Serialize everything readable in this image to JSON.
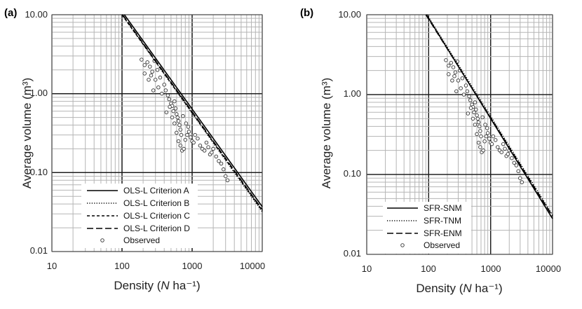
{
  "chart_data": [
    {
      "type": "scatter",
      "panel_label": "(a)",
      "xlabel_prefix": "Density (",
      "xlabel_var": "N",
      "xlabel_suffix": " ha⁻¹)",
      "ylabel": "Average volume (m³)",
      "xscale": "log",
      "yscale": "log",
      "xlim": [
        10,
        10000
      ],
      "ylim": [
        0.01,
        10
      ],
      "x_ticks": [
        "10",
        "100",
        "1000",
        "10000"
      ],
      "y_ticks": [
        "0.01",
        "0.10",
        "1.00",
        "10.00"
      ],
      "legend_position": "bottom-left",
      "series": [
        {
          "name": "OLS-L Criterion A",
          "style": "solid",
          "points": [
            [
              108,
              10
            ],
            [
              10000,
              0.037
            ]
          ]
        },
        {
          "name": "OLS-L Criterion B",
          "style": "dotted",
          "points": [
            [
              100,
              10
            ],
            [
              10000,
              0.032
            ]
          ]
        },
        {
          "name": "OLS-L Criterion C",
          "style": "dashed",
          "points": [
            [
              100,
              10
            ],
            [
              10000,
              0.033
            ]
          ]
        },
        {
          "name": "OLS-L Criterion D",
          "style": "longdash",
          "points": [
            [
              102,
              10
            ],
            [
              10000,
              0.034
            ]
          ]
        }
      ],
      "observed_label": "Observed",
      "observed": [
        [
          190,
          2.7
        ],
        [
          210,
          2.3
        ],
        [
          230,
          2.5
        ],
        [
          250,
          2.2
        ],
        [
          270,
          1.9
        ],
        [
          290,
          2.6
        ],
        [
          210,
          1.8
        ],
        [
          240,
          1.5
        ],
        [
          260,
          1.7
        ],
        [
          300,
          1.5
        ],
        [
          320,
          2.0
        ],
        [
          330,
          1.2
        ],
        [
          280,
          1.1
        ],
        [
          350,
          1.6
        ],
        [
          370,
          1.0
        ],
        [
          400,
          1.3
        ],
        [
          420,
          1.1
        ],
        [
          450,
          0.95
        ],
        [
          470,
          0.85
        ],
        [
          500,
          0.75
        ],
        [
          520,
          0.7
        ],
        [
          540,
          0.6
        ],
        [
          560,
          0.8
        ],
        [
          580,
          0.65
        ],
        [
          600,
          0.55
        ],
        [
          620,
          0.5
        ],
        [
          640,
          0.45
        ],
        [
          660,
          0.4
        ],
        [
          680,
          0.35
        ],
        [
          700,
          0.3
        ],
        [
          520,
          0.5
        ],
        [
          560,
          0.42
        ],
        [
          600,
          0.32
        ],
        [
          640,
          0.25
        ],
        [
          680,
          0.22
        ],
        [
          720,
          0.19
        ],
        [
          760,
          0.2
        ],
        [
          800,
          0.26
        ],
        [
          850,
          0.3
        ],
        [
          900,
          0.33
        ],
        [
          950,
          0.28
        ],
        [
          1000,
          0.25
        ],
        [
          1050,
          0.24
        ],
        [
          1100,
          0.3
        ],
        [
          1200,
          0.27
        ],
        [
          1300,
          0.22
        ],
        [
          1400,
          0.2
        ],
        [
          1500,
          0.19
        ],
        [
          1600,
          0.24
        ],
        [
          1700,
          0.21
        ],
        [
          1800,
          0.17
        ],
        [
          1900,
          0.18
        ],
        [
          2000,
          0.2
        ],
        [
          2200,
          0.16
        ],
        [
          2400,
          0.14
        ],
        [
          2600,
          0.13
        ],
        [
          2800,
          0.11
        ],
        [
          3000,
          0.09
        ],
        [
          3200,
          0.08
        ],
        [
          430,
          0.58
        ],
        [
          480,
          0.68
        ],
        [
          740,
          0.52
        ],
        [
          820,
          0.42
        ],
        [
          880,
          0.38
        ]
      ]
    },
    {
      "type": "scatter",
      "panel_label": "(b)",
      "xlabel_prefix": "Density (",
      "xlabel_var": "N",
      "xlabel_suffix": " ha⁻¹)",
      "ylabel": "Average volume (m³)",
      "xscale": "log",
      "yscale": "log",
      "xlim": [
        10,
        10000
      ],
      "ylim": [
        0.01,
        10
      ],
      "x_ticks": [
        "10",
        "100",
        "1000",
        "10000"
      ],
      "y_ticks": [
        "0.01",
        "0.10",
        "1.00",
        "10.00"
      ],
      "legend_position": "bottom-left",
      "series": [
        {
          "name": "SFR-SNM",
          "style": "solid",
          "points": [
            [
              92,
              10
            ],
            [
              10000,
              0.028
            ]
          ]
        },
        {
          "name": "SFR-TNM",
          "style": "dotted",
          "points": [
            [
              94,
              10
            ],
            [
              10000,
              0.031
            ]
          ]
        },
        {
          "name": "SFR-ENM",
          "style": "longdash",
          "points": [
            [
              90,
              10
            ],
            [
              10000,
              0.03
            ]
          ]
        }
      ],
      "observed_label": "Observed",
      "observed": [
        [
          190,
          2.7
        ],
        [
          210,
          2.3
        ],
        [
          230,
          2.5
        ],
        [
          250,
          2.2
        ],
        [
          270,
          1.9
        ],
        [
          290,
          2.6
        ],
        [
          210,
          1.8
        ],
        [
          240,
          1.5
        ],
        [
          260,
          1.7
        ],
        [
          300,
          1.5
        ],
        [
          320,
          2.0
        ],
        [
          330,
          1.2
        ],
        [
          280,
          1.1
        ],
        [
          350,
          1.6
        ],
        [
          370,
          1.0
        ],
        [
          400,
          1.3
        ],
        [
          420,
          1.1
        ],
        [
          450,
          0.95
        ],
        [
          470,
          0.85
        ],
        [
          500,
          0.75
        ],
        [
          520,
          0.7
        ],
        [
          540,
          0.6
        ],
        [
          560,
          0.8
        ],
        [
          580,
          0.65
        ],
        [
          600,
          0.55
        ],
        [
          620,
          0.5
        ],
        [
          640,
          0.45
        ],
        [
          660,
          0.4
        ],
        [
          680,
          0.35
        ],
        [
          700,
          0.3
        ],
        [
          520,
          0.5
        ],
        [
          560,
          0.42
        ],
        [
          600,
          0.32
        ],
        [
          640,
          0.25
        ],
        [
          680,
          0.22
        ],
        [
          720,
          0.19
        ],
        [
          760,
          0.2
        ],
        [
          800,
          0.26
        ],
        [
          850,
          0.3
        ],
        [
          900,
          0.33
        ],
        [
          950,
          0.28
        ],
        [
          1000,
          0.25
        ],
        [
          1050,
          0.24
        ],
        [
          1100,
          0.3
        ],
        [
          1200,
          0.27
        ],
        [
          1300,
          0.22
        ],
        [
          1400,
          0.2
        ],
        [
          1500,
          0.19
        ],
        [
          1600,
          0.24
        ],
        [
          1700,
          0.21
        ],
        [
          1800,
          0.17
        ],
        [
          1900,
          0.18
        ],
        [
          2000,
          0.2
        ],
        [
          2200,
          0.16
        ],
        [
          2400,
          0.14
        ],
        [
          2600,
          0.13
        ],
        [
          2800,
          0.11
        ],
        [
          3000,
          0.09
        ],
        [
          3200,
          0.08
        ],
        [
          430,
          0.58
        ],
        [
          480,
          0.68
        ],
        [
          740,
          0.52
        ],
        [
          820,
          0.42
        ],
        [
          880,
          0.38
        ]
      ]
    }
  ]
}
